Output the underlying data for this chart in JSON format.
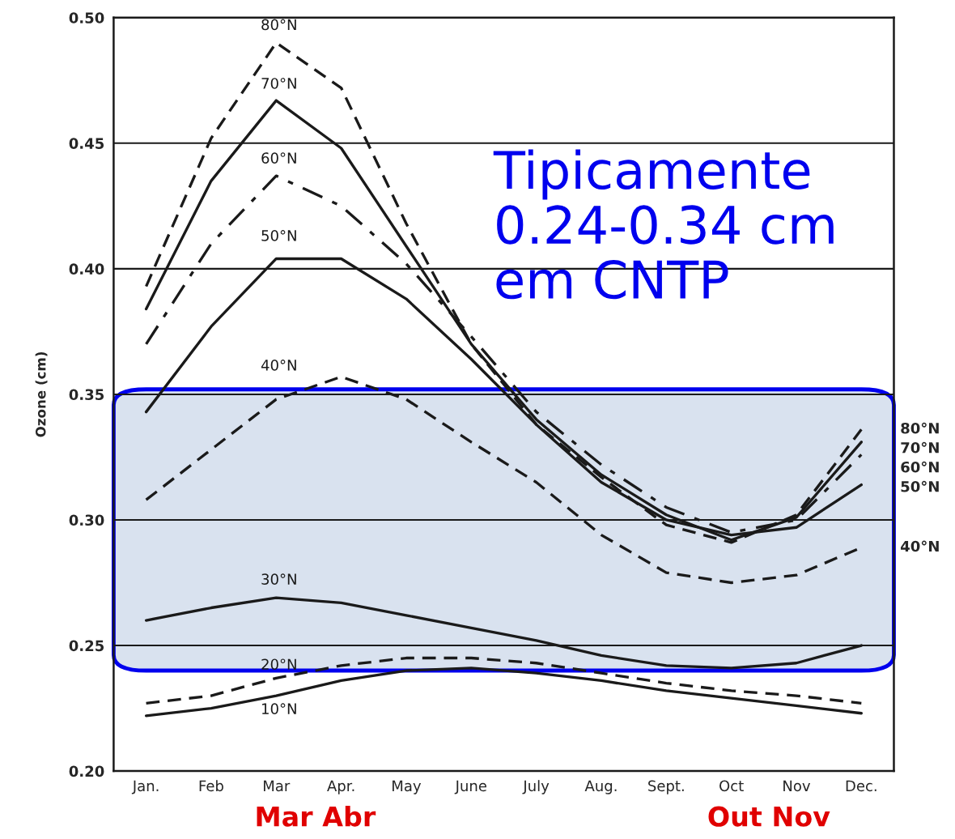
{
  "chart_data": {
    "type": "line",
    "ylabel": "Ozone (cm)",
    "categories": [
      "Jan.",
      "Feb",
      "Mar",
      "Apr.",
      "May",
      "June",
      "July",
      "Aug.",
      "Sept.",
      "Oct",
      "Nov",
      "Dec."
    ],
    "ylim": [
      0.2,
      0.5
    ],
    "yticks": [
      {
        "value": 0.2,
        "label": "0.20"
      },
      {
        "value": 0.25,
        "label": "0.25"
      },
      {
        "value": 0.3,
        "label": "0.30"
      },
      {
        "value": 0.35,
        "label": "0.35"
      },
      {
        "value": 0.4,
        "label": "0.40"
      },
      {
        "value": 0.45,
        "label": "0.45"
      },
      {
        "value": 0.5,
        "label": "0.50"
      }
    ],
    "grid": "y",
    "series": [
      {
        "name": "80°N",
        "color": "#1a1a1a",
        "line_style": "dashed",
        "values": [
          0.393,
          0.452,
          0.49,
          0.472,
          0.418,
          0.37,
          0.338,
          0.317,
          0.298,
          0.291,
          0.302,
          0.336
        ]
      },
      {
        "name": "70°N",
        "color": "#1a1a1a",
        "line_style": "solid",
        "values": [
          0.384,
          0.435,
          0.467,
          0.448,
          0.409,
          0.37,
          0.34,
          0.318,
          0.302,
          0.292,
          0.301,
          0.331
        ]
      },
      {
        "name": "60°N",
        "color": "#1a1a1a",
        "line_style": "dashdot",
        "values": [
          0.37,
          0.41,
          0.437,
          0.425,
          0.402,
          0.373,
          0.343,
          0.322,
          0.305,
          0.295,
          0.3,
          0.326
        ]
      },
      {
        "name": "50°N",
        "color": "#1a1a1a",
        "line_style": "solid",
        "values": [
          0.343,
          0.377,
          0.404,
          0.404,
          0.388,
          0.364,
          0.338,
          0.315,
          0.3,
          0.294,
          0.297,
          0.314
        ]
      },
      {
        "name": "40°N",
        "color": "#1a1a1a",
        "line_style": "dashed",
        "values": [
          0.308,
          0.328,
          0.348,
          0.357,
          0.348,
          0.331,
          0.315,
          0.294,
          0.279,
          0.275,
          0.278,
          0.289
        ]
      },
      {
        "color": "#1a1a1a",
        "line_style": "solid",
        "values": [
          0.26,
          0.265,
          0.269,
          0.267,
          0.262,
          0.257,
          0.252,
          0.246,
          0.242,
          0.241,
          0.243,
          0.25
        ]
      },
      {
        "color": "#1a1a1a",
        "line_style": "dashed",
        "values": [
          0.227,
          0.23,
          0.237,
          0.242,
          0.245,
          0.245,
          0.243,
          0.239,
          0.235,
          0.232,
          0.23,
          0.227
        ]
      },
      {
        "color": "#1a1a1a",
        "line_style": "solid",
        "values": [
          0.222,
          0.225,
          0.23,
          0.236,
          0.24,
          0.241,
          0.239,
          0.236,
          0.232,
          0.229,
          0.226,
          0.223
        ]
      }
    ],
    "bands": [
      {
        "axis": "y",
        "from": 0.24,
        "to": 0.352,
        "color": "#d9e2ef"
      }
    ],
    "annotations": [
      "80°N",
      "70°N",
      "60°N",
      "50°N",
      "40°N",
      "30°N",
      "20°N",
      "10°N",
      "Tipicamente\n0.24-0.34 cm\nem CNTP",
      "Mar Abr",
      "Out Nov"
    ]
  }
}
